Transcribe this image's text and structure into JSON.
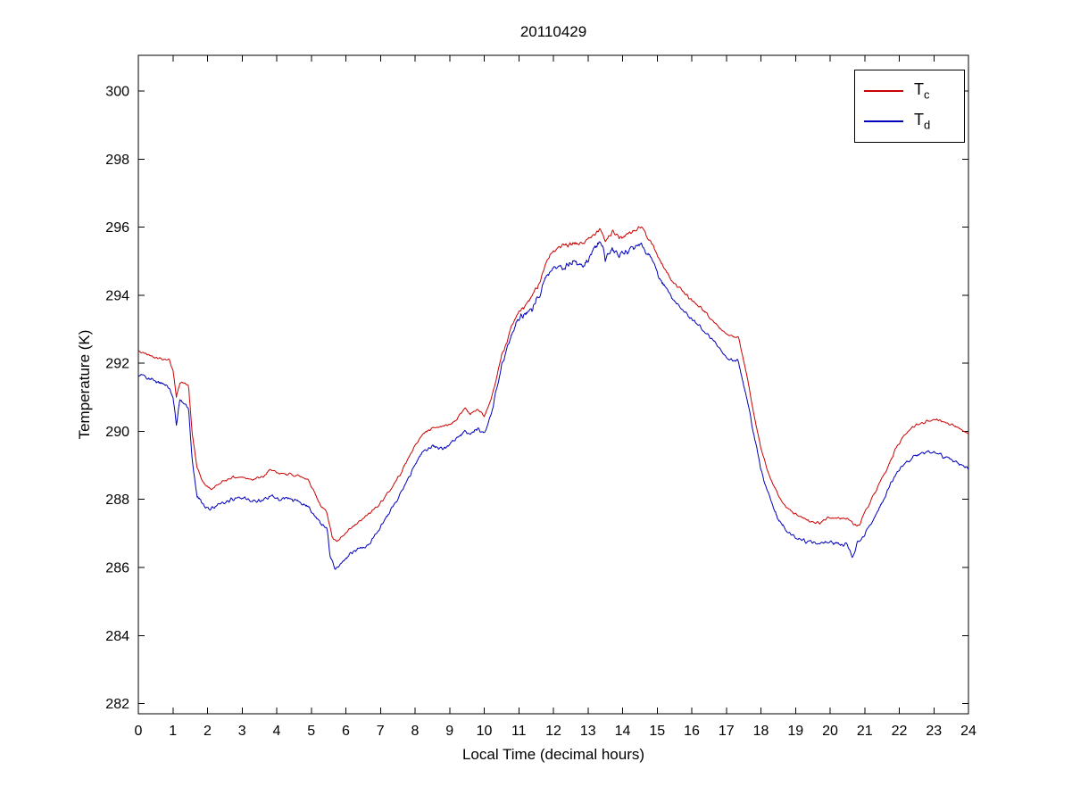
{
  "figure": {
    "title": "20110429",
    "xlabel": "Local Time (decimal hours)",
    "ylabel": "Temperature (K)"
  },
  "chart_data": {
    "type": "line",
    "title": "20110429",
    "xlabel": "Local Time (decimal hours)",
    "ylabel": "Temperature (K)",
    "xlim": [
      0,
      24
    ],
    "ylim": [
      281.7,
      301.05
    ],
    "xticks": [
      0,
      1,
      2,
      3,
      4,
      5,
      6,
      7,
      8,
      9,
      10,
      11,
      12,
      13,
      14,
      15,
      16,
      17,
      18,
      19,
      20,
      21,
      22,
      23,
      24
    ],
    "yticks": [
      282,
      284,
      286,
      288,
      290,
      292,
      294,
      296,
      298,
      300
    ],
    "grid": false,
    "legend_position": "top-right",
    "sample_step": 0.02,
    "series": [
      {
        "name": "T_c",
        "label_main": "T",
        "label_sub": "c",
        "color": "#cc0000",
        "noise": 0.05,
        "noise_boost": [
          10.5,
          15.2,
          1.8
        ],
        "keypoints": [
          [
            0,
            292.35
          ],
          [
            0.3,
            292.25
          ],
          [
            0.6,
            292.15
          ],
          [
            0.9,
            292.1
          ],
          [
            1.0,
            291.8
          ],
          [
            1.1,
            291.0
          ],
          [
            1.2,
            291.45
          ],
          [
            1.35,
            291.4
          ],
          [
            1.45,
            291.35
          ],
          [
            1.55,
            290.0
          ],
          [
            1.7,
            288.9
          ],
          [
            1.9,
            288.45
          ],
          [
            2.1,
            288.3
          ],
          [
            2.4,
            288.5
          ],
          [
            2.7,
            288.65
          ],
          [
            3.0,
            288.65
          ],
          [
            3.3,
            288.6
          ],
          [
            3.6,
            288.65
          ],
          [
            3.85,
            288.9
          ],
          [
            4.0,
            288.75
          ],
          [
            4.3,
            288.75
          ],
          [
            4.6,
            288.7
          ],
          [
            4.9,
            288.6
          ],
          [
            5.1,
            288.2
          ],
          [
            5.3,
            287.75
          ],
          [
            5.45,
            287.65
          ],
          [
            5.6,
            286.9
          ],
          [
            5.75,
            286.75
          ],
          [
            5.9,
            286.9
          ],
          [
            6.1,
            287.1
          ],
          [
            6.4,
            287.35
          ],
          [
            6.7,
            287.6
          ],
          [
            7.0,
            287.9
          ],
          [
            7.3,
            288.3
          ],
          [
            7.6,
            288.8
          ],
          [
            7.9,
            289.4
          ],
          [
            8.2,
            289.9
          ],
          [
            8.5,
            290.1
          ],
          [
            8.8,
            290.15
          ],
          [
            9.0,
            290.2
          ],
          [
            9.2,
            290.35
          ],
          [
            9.45,
            290.7
          ],
          [
            9.6,
            290.5
          ],
          [
            9.8,
            290.65
          ],
          [
            10.0,
            290.45
          ],
          [
            10.2,
            290.9
          ],
          [
            10.5,
            292.2
          ],
          [
            10.8,
            293.1
          ],
          [
            11.0,
            293.5
          ],
          [
            11.2,
            293.7
          ],
          [
            11.4,
            294.0
          ],
          [
            11.6,
            294.4
          ],
          [
            11.8,
            295.0
          ],
          [
            12.0,
            295.3
          ],
          [
            12.3,
            295.45
          ],
          [
            12.6,
            295.5
          ],
          [
            12.9,
            295.55
          ],
          [
            13.1,
            295.7
          ],
          [
            13.35,
            296.0
          ],
          [
            13.5,
            295.6
          ],
          [
            13.7,
            295.85
          ],
          [
            13.9,
            295.7
          ],
          [
            14.1,
            295.75
          ],
          [
            14.35,
            295.9
          ],
          [
            14.55,
            296.0
          ],
          [
            14.75,
            295.7
          ],
          [
            15.0,
            295.2
          ],
          [
            15.2,
            294.8
          ],
          [
            15.45,
            294.4
          ],
          [
            15.7,
            294.15
          ],
          [
            16.0,
            293.85
          ],
          [
            16.3,
            293.6
          ],
          [
            16.6,
            293.25
          ],
          [
            16.9,
            292.95
          ],
          [
            17.1,
            292.8
          ],
          [
            17.35,
            292.75
          ],
          [
            17.45,
            292.3
          ],
          [
            17.6,
            291.6
          ],
          [
            17.8,
            290.5
          ],
          [
            18.0,
            289.5
          ],
          [
            18.2,
            288.8
          ],
          [
            18.5,
            288.1
          ],
          [
            18.8,
            287.7
          ],
          [
            19.1,
            287.5
          ],
          [
            19.4,
            287.35
          ],
          [
            19.7,
            287.3
          ],
          [
            19.9,
            287.45
          ],
          [
            20.2,
            287.45
          ],
          [
            20.5,
            287.45
          ],
          [
            20.7,
            287.25
          ],
          [
            20.85,
            287.25
          ],
          [
            21.0,
            287.6
          ],
          [
            21.3,
            288.2
          ],
          [
            21.6,
            288.8
          ],
          [
            21.9,
            289.5
          ],
          [
            22.2,
            289.95
          ],
          [
            22.5,
            290.2
          ],
          [
            22.8,
            290.3
          ],
          [
            23.1,
            290.35
          ],
          [
            23.4,
            290.25
          ],
          [
            23.7,
            290.1
          ],
          [
            24.0,
            289.95
          ]
        ]
      },
      {
        "name": "T_d",
        "label_main": "T",
        "label_sub": "d",
        "color": "#0000bb",
        "noise": 0.07,
        "noise_boost": [
          10.5,
          15.2,
          2.0
        ],
        "keypoints": [
          [
            0,
            291.65
          ],
          [
            0.3,
            291.55
          ],
          [
            0.6,
            291.45
          ],
          [
            0.9,
            291.3
          ],
          [
            1.0,
            291.0
          ],
          [
            1.1,
            290.2
          ],
          [
            1.2,
            290.9
          ],
          [
            1.35,
            290.8
          ],
          [
            1.45,
            290.7
          ],
          [
            1.55,
            289.2
          ],
          [
            1.7,
            288.1
          ],
          [
            1.9,
            287.8
          ],
          [
            2.1,
            287.7
          ],
          [
            2.4,
            287.9
          ],
          [
            2.7,
            288.0
          ],
          [
            3.0,
            288.05
          ],
          [
            3.3,
            287.95
          ],
          [
            3.6,
            287.95
          ],
          [
            3.85,
            288.15
          ],
          [
            4.0,
            288.0
          ],
          [
            4.3,
            288.05
          ],
          [
            4.6,
            287.95
          ],
          [
            4.9,
            287.8
          ],
          [
            5.1,
            287.5
          ],
          [
            5.3,
            287.25
          ],
          [
            5.45,
            287.2
          ],
          [
            5.55,
            286.3
          ],
          [
            5.7,
            285.95
          ],
          [
            5.9,
            286.15
          ],
          [
            6.1,
            286.4
          ],
          [
            6.4,
            286.55
          ],
          [
            6.7,
            286.7
          ],
          [
            7.0,
            287.2
          ],
          [
            7.3,
            287.7
          ],
          [
            7.6,
            288.2
          ],
          [
            7.9,
            288.8
          ],
          [
            8.2,
            289.4
          ],
          [
            8.5,
            289.55
          ],
          [
            8.8,
            289.5
          ],
          [
            9.0,
            289.6
          ],
          [
            9.2,
            289.8
          ],
          [
            9.45,
            290.0
          ],
          [
            9.6,
            289.9
          ],
          [
            9.8,
            290.1
          ],
          [
            10.0,
            289.95
          ],
          [
            10.2,
            290.5
          ],
          [
            10.5,
            291.9
          ],
          [
            10.8,
            292.9
          ],
          [
            11.0,
            293.3
          ],
          [
            11.2,
            293.5
          ],
          [
            11.4,
            293.6
          ],
          [
            11.6,
            294.0
          ],
          [
            11.8,
            294.6
          ],
          [
            12.0,
            294.9
          ],
          [
            12.3,
            294.8
          ],
          [
            12.6,
            295.0
          ],
          [
            12.9,
            294.9
          ],
          [
            13.1,
            295.2
          ],
          [
            13.35,
            295.6
          ],
          [
            13.5,
            295.1
          ],
          [
            13.7,
            295.4
          ],
          [
            13.9,
            295.2
          ],
          [
            14.1,
            295.3
          ],
          [
            14.35,
            295.4
          ],
          [
            14.55,
            295.5
          ],
          [
            14.75,
            295.2
          ],
          [
            15.0,
            294.7
          ],
          [
            15.2,
            294.3
          ],
          [
            15.45,
            293.9
          ],
          [
            15.7,
            293.6
          ],
          [
            16.0,
            293.3
          ],
          [
            16.3,
            293.0
          ],
          [
            16.6,
            292.7
          ],
          [
            16.9,
            292.3
          ],
          [
            17.1,
            292.1
          ],
          [
            17.35,
            292.05
          ],
          [
            17.45,
            291.6
          ],
          [
            17.6,
            290.9
          ],
          [
            17.8,
            289.9
          ],
          [
            18.0,
            288.9
          ],
          [
            18.2,
            288.2
          ],
          [
            18.5,
            287.4
          ],
          [
            18.8,
            287.0
          ],
          [
            19.1,
            286.85
          ],
          [
            19.4,
            286.75
          ],
          [
            19.7,
            286.7
          ],
          [
            19.9,
            286.75
          ],
          [
            20.2,
            286.7
          ],
          [
            20.5,
            286.65
          ],
          [
            20.65,
            286.3
          ],
          [
            20.8,
            286.75
          ],
          [
            21.0,
            286.95
          ],
          [
            21.3,
            287.5
          ],
          [
            21.6,
            288.1
          ],
          [
            21.9,
            288.75
          ],
          [
            22.2,
            289.1
          ],
          [
            22.5,
            289.3
          ],
          [
            22.8,
            289.4
          ],
          [
            23.1,
            289.35
          ],
          [
            23.4,
            289.2
          ],
          [
            23.7,
            289.05
          ],
          [
            24.0,
            288.9
          ]
        ]
      }
    ]
  }
}
